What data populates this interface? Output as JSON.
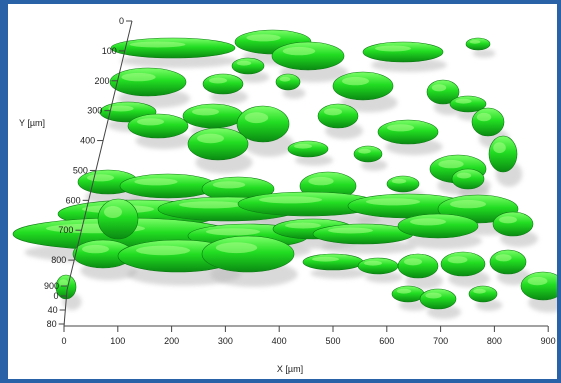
{
  "scene": {
    "subject": "3D confocal rendering of green biofilm clusters",
    "cluster_color": "#22dd22",
    "background_color": "#ffffff",
    "frame_color": "#2a62a8"
  },
  "axes": {
    "y_axis": {
      "title": "Y [µm]",
      "ticks": [
        "0",
        "100",
        "200",
        "300",
        "400",
        "500",
        "600",
        "700",
        "800",
        "900"
      ]
    },
    "z_axis": {
      "ticks": [
        "0",
        "40",
        "80"
      ]
    },
    "x_axis": {
      "title": "X [µm]",
      "ticks": [
        "0",
        "100",
        "200",
        "300",
        "400",
        "500",
        "600",
        "700",
        "800",
        "900"
      ]
    }
  }
}
